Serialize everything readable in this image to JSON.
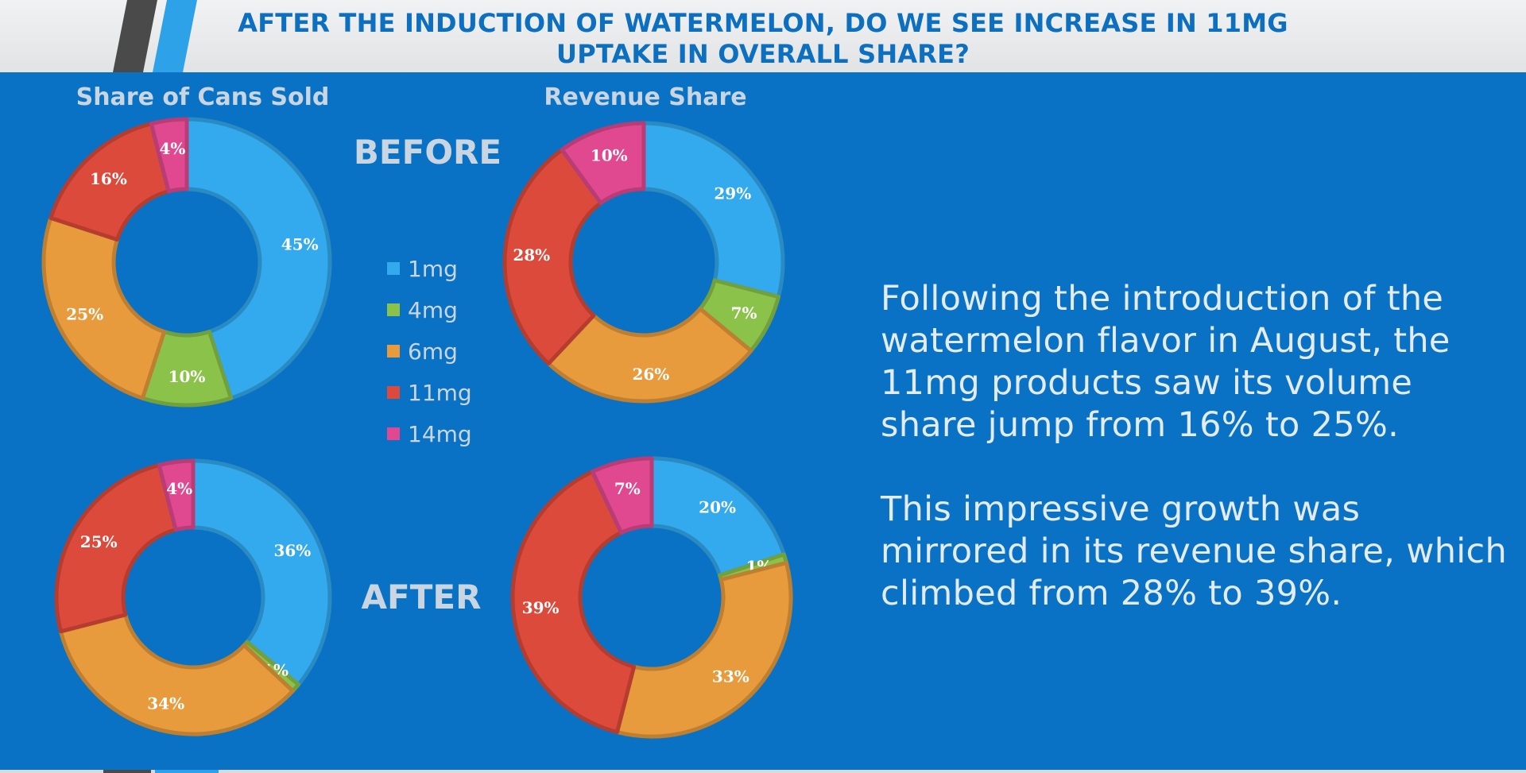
{
  "page": {
    "title": "AFTER THE INDUCTION OF WATERMELON, DO WE SEE INCREASE IN 11MG UPTAKE IN OVERALL SHARE?",
    "before_label": "BEFORE",
    "after_label": "AFTER",
    "col1_title": "Share of Cans Sold",
    "col2_title": "Revenue Share",
    "summary_1": "Following the introduction of the watermelon flavor in August, the 11mg products saw its volume share jump from 16% to 25%.",
    "summary_2": "This impressive growth was mirrored in its revenue share, which climbed from 28% to 39%."
  },
  "legend": [
    {
      "label": "1mg",
      "color": "#33aaee"
    },
    {
      "label": "4mg",
      "color": "#8bc34a"
    },
    {
      "label": "6mg",
      "color": "#e89b3c"
    },
    {
      "label": "11mg",
      "color": "#dc4a3b"
    },
    {
      "label": "14mg",
      "color": "#e0498f"
    }
  ],
  "chart_data": [
    {
      "type": "donut",
      "title": "Share of Cans Sold",
      "period": "BEFORE",
      "categories": [
        "1mg",
        "4mg",
        "6mg",
        "11mg",
        "14mg"
      ],
      "values": [
        45,
        10,
        25,
        16,
        4
      ],
      "labels": [
        "45%",
        "10%",
        "25%",
        "16%",
        "4%"
      ]
    },
    {
      "type": "donut",
      "title": "Revenue Share",
      "period": "BEFORE",
      "categories": [
        "1mg",
        "4mg",
        "6mg",
        "11mg",
        "14mg"
      ],
      "values": [
        29,
        7,
        26,
        28,
        10
      ],
      "labels": [
        "29%",
        "7%",
        "26%",
        "28%",
        "10%"
      ]
    },
    {
      "type": "donut",
      "title": "Share of Cans Sold",
      "period": "AFTER",
      "categories": [
        "1mg",
        "4mg",
        "6mg",
        "11mg",
        "14mg"
      ],
      "values": [
        36,
        1,
        34,
        25,
        4
      ],
      "labels": [
        "36%",
        "1%",
        "34%",
        "25%",
        "4%"
      ]
    },
    {
      "type": "donut",
      "title": "Revenue Share",
      "period": "AFTER",
      "categories": [
        "1mg",
        "4mg",
        "6mg",
        "11mg",
        "14mg"
      ],
      "values": [
        20,
        1,
        33,
        39,
        7
      ],
      "labels": [
        "20%",
        "1%",
        "33%",
        "39%",
        "7%"
      ]
    }
  ]
}
